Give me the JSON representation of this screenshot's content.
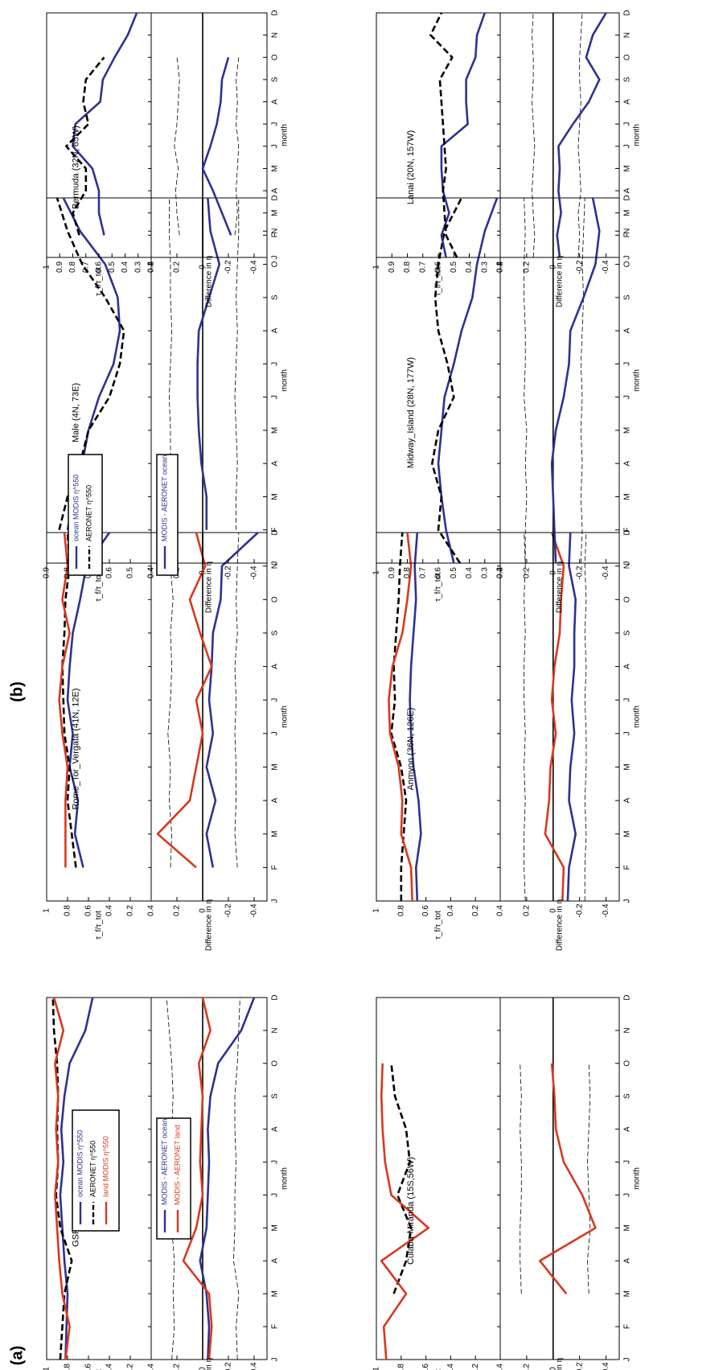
{
  "figure": {
    "panel_labels": [
      "(a)",
      "(b)"
    ],
    "ylabel_ratio": "τ_f/τ_tot",
    "ylabel_diff": "Difference in η",
    "xlabel": "month",
    "months": [
      "J",
      "F",
      "M",
      "A",
      "M",
      "J",
      "J",
      "A",
      "S",
      "O",
      "N",
      "D"
    ],
    "colors": {
      "ocean": "#2e3192",
      "land": "#d9381e",
      "aeronet": "#000000",
      "band": "#000000"
    }
  },
  "legends": {
    "a_ratio": [
      "ocean MODIS η^550",
      "AERONET η^550",
      "land MODIS η^550"
    ],
    "a_diff": [
      "MODIS - AERONET ocean",
      "MODIS - AERONET land"
    ],
    "b_ratio": [
      "ocean MODIS η^550",
      "AERONET η^550"
    ],
    "b_diff": [
      "MODIS - AERONET ocean"
    ]
  },
  "chart_data": [
    {
      "type": "line",
      "site": "GSFC (39N, 76W)",
      "col": 0,
      "row": 0,
      "ratio_ylim": [
        0,
        1
      ],
      "ratio_ticks": [
        0.2,
        0.4,
        0.6,
        0.8,
        1
      ],
      "diff_ylim": [
        -0.5,
        0.4
      ],
      "diff_ticks": [
        -0.4,
        -0.2,
        0,
        0.2,
        0.4
      ],
      "x": [
        1,
        2,
        3,
        4,
        5,
        6,
        7,
        8,
        9,
        10,
        11,
        12
      ],
      "series": [
        {
          "role": "ocean",
          "values": [
            0.82,
            0.81,
            0.8,
            0.83,
            0.85,
            0.87,
            0.84,
            0.86,
            0.83,
            0.78,
            0.63,
            0.56
          ]
        },
        {
          "role": "aeronet",
          "values": [
            0.87,
            0.85,
            0.83,
            0.76,
            0.87,
            0.91,
            0.89,
            0.9,
            0.89,
            0.9,
            0.93,
            0.94
          ]
        },
        {
          "role": "land",
          "values": [
            0.82,
            0.78,
            0.85,
            0.88,
            0.9,
            0.92,
            0.89,
            0.91,
            0.89,
            0.92,
            0.84,
            0.93
          ]
        }
      ],
      "diff": [
        {
          "role": "ocean",
          "values": [
            -0.04,
            -0.05,
            -0.03,
            0.02,
            -0.03,
            -0.04,
            -0.05,
            -0.04,
            -0.06,
            -0.12,
            -0.3,
            -0.4
          ]
        },
        {
          "role": "land",
          "values": [
            -0.05,
            -0.07,
            -0.05,
            0.15,
            0.05,
            0.0,
            0.02,
            0.01,
            0.0,
            0.03,
            -0.06,
            0.0
          ]
        }
      ],
      "band": [
        [
          0.24,
          0.22,
          0.23,
          0.22,
          0.24,
          0.25,
          0.25,
          0.24,
          0.23,
          0.24,
          0.26,
          0.28
        ],
        [
          -0.27,
          -0.26,
          -0.28,
          -0.24,
          -0.25,
          -0.25,
          -0.26,
          -0.25,
          -0.25,
          -0.27,
          -0.28,
          -0.29
        ]
      ]
    },
    {
      "type": "line",
      "site": "Rome_Tor_Vergata (41N, 12E)",
      "col": 1,
      "row": 0,
      "ratio_ylim": [
        0,
        1
      ],
      "ratio_ticks": [
        0.2,
        0.4,
        0.6,
        0.8,
        1
      ],
      "diff_ylim": [
        -0.5,
        0.4
      ],
      "diff_ticks": [
        -0.4,
        -0.2,
        0,
        0.2,
        0.4
      ],
      "x": [
        2,
        3,
        4,
        5,
        6,
        7,
        8,
        9,
        10,
        11,
        12
      ],
      "series": [
        {
          "role": "ocean",
          "values": [
            0.65,
            0.73,
            0.7,
            0.78,
            0.75,
            0.8,
            0.78,
            0.75,
            0.68,
            0.62,
            0.4
          ]
        },
        {
          "role": "aeronet",
          "values": [
            0.72,
            0.76,
            0.8,
            0.78,
            0.83,
            0.84,
            0.85,
            0.83,
            0.82,
            0.78,
            0.8
          ]
        },
        {
          "role": "land",
          "values": [
            0.82,
            0.82,
            0.82,
            0.8,
            0.85,
            0.88,
            0.85,
            0.78,
            0.85,
            0.8,
            0.83
          ]
        }
      ],
      "diff": [
        {
          "role": "ocean",
          "values": [
            -0.08,
            -0.03,
            -0.1,
            -0.03,
            -0.08,
            -0.05,
            -0.07,
            -0.08,
            -0.14,
            -0.15,
            -0.43
          ]
        },
        {
          "role": "land",
          "values": [
            0.05,
            0.35,
            0.1,
            0.05,
            0.0,
            0.05,
            -0.07,
            0.02,
            0.1,
            -0.02,
            0.05
          ]
        }
      ],
      "band": [
        [
          0.25,
          0.24,
          0.26,
          0.25,
          0.27,
          0.25,
          0.24,
          0.25,
          0.23,
          0.25,
          0.27
        ],
        [
          -0.27,
          -0.25,
          -0.26,
          -0.26,
          -0.25,
          -0.26,
          -0.25,
          -0.27,
          -0.26,
          -0.27,
          -0.28
        ]
      ]
    },
    {
      "type": "line",
      "site": "Male (4N, 73E)",
      "col": 2,
      "row": 0,
      "ratio_ylim": [
        0.4,
        0.9
      ],
      "ratio_ticks": [
        0.4,
        0.5,
        0.6,
        0.7,
        0.8,
        0.9
      ],
      "diff_ylim": [
        -0.5,
        0.4
      ],
      "diff_ticks": [
        -0.4,
        -0.2,
        0,
        0.2,
        0.4
      ],
      "x": [
        2,
        3,
        4,
        5,
        6,
        7,
        8,
        9,
        10,
        11,
        12
      ],
      "series": [
        {
          "role": "ocean",
          "values": [
            0.8,
            0.77,
            0.73,
            0.7,
            0.65,
            0.58,
            0.55,
            0.56,
            0.62,
            0.74,
            0.82
          ]
        },
        {
          "role": "aeronet",
          "values": [
            0.84,
            0.8,
            0.74,
            0.7,
            0.6,
            0.55,
            0.53,
            0.62,
            0.73,
            0.8,
            0.85
          ]
        }
      ],
      "diff": [
        {
          "role": "ocean",
          "values": [
            -0.03,
            -0.03,
            0.01,
            0.03,
            0.04,
            0.04,
            0.03,
            -0.05,
            -0.13,
            -0.06,
            -0.04
          ]
        }
      ],
      "band": [
        [
          0.24,
          0.24,
          0.25,
          0.25,
          0.26,
          0.25,
          0.24,
          0.25,
          0.25,
          0.26,
          0.26
        ],
        [
          -0.26,
          -0.26,
          -0.27,
          -0.26,
          -0.25,
          -0.26,
          -0.27,
          -0.26,
          -0.27,
          -0.28,
          -0.28
        ]
      ]
    },
    {
      "type": "line",
      "site": "Bermuda (32N, 65W)",
      "col": 3,
      "row": 0,
      "ratio_ylim": [
        0.2,
        1
      ],
      "ratio_ticks": [
        0.2,
        0.3,
        0.4,
        0.5,
        0.6,
        0.7,
        0.8,
        0.9,
        1
      ],
      "diff_ylim": [
        -0.5,
        0.4
      ],
      "diff_ticks": [
        -0.4,
        -0.2,
        0,
        0.2,
        0.4
      ],
      "x": [
        2,
        3,
        4,
        5,
        6,
        7,
        8,
        9,
        10,
        11,
        12
      ],
      "series": [
        {
          "role": "ocean",
          "values": [
            0.56,
            0.6,
            0.6,
            0.65,
            0.8,
            0.78,
            0.59,
            0.57,
            0.48,
            0.38,
            0.31
          ]
        },
        {
          "role": "aeronet",
          "values": [
            0.75,
            0.8,
            0.7,
            0.7,
            0.85,
            0.68,
            0.72,
            0.7,
            0.56,
            null,
            null
          ]
        }
      ],
      "diff": [
        {
          "role": "ocean",
          "values": [
            -0.22,
            -0.15,
            -0.08,
            0.0,
            -0.06,
            -0.11,
            -0.14,
            -0.15,
            -0.2,
            null,
            null
          ]
        }
      ],
      "band": [
        [
          0.18,
          0.2,
          0.21,
          0.19,
          0.22,
          0.2,
          0.19,
          0.18,
          0.2,
          null,
          null
        ],
        [
          -0.25,
          -0.27,
          -0.26,
          -0.27,
          -0.28,
          -0.26,
          -0.27,
          -0.26,
          -0.28,
          null,
          null
        ]
      ]
    },
    {
      "type": "line",
      "site": "Cuiaba-Miranda (15S,56W)",
      "col": 0,
      "row": 1,
      "ratio_ylim": [
        0,
        1
      ],
      "ratio_ticks": [
        0.2,
        0.4,
        0.6,
        0.8,
        1
      ],
      "diff_ylim": [
        -0.5,
        0.4
      ],
      "diff_ticks": [
        -0.4,
        -0.2,
        0,
        0.2,
        0.4
      ],
      "x": [
        1,
        2,
        3,
        4,
        5,
        6,
        7,
        8,
        9,
        10,
        11,
        12
      ],
      "series": [
        {
          "role": "aeronet",
          "values": [
            null,
            null,
            0.86,
            0.76,
            0.72,
            0.83,
            0.73,
            0.76,
            0.85,
            0.88,
            null,
            null
          ]
        },
        {
          "role": "land",
          "values": [
            0.92,
            0.94,
            0.76,
            0.96,
            0.58,
            0.88,
            0.93,
            0.95,
            0.96,
            0.95,
            null,
            null
          ]
        }
      ],
      "diff": [
        {
          "role": "land",
          "values": [
            null,
            null,
            -0.1,
            0.1,
            -0.32,
            -0.22,
            -0.08,
            -0.02,
            -0.01,
            0.01,
            null,
            null
          ]
        }
      ],
      "band": [
        [
          null,
          null,
          0.24,
          0.25,
          0.25,
          0.24,
          0.24,
          0.25,
          0.24,
          0.25,
          null,
          null
        ],
        [
          null,
          null,
          -0.27,
          -0.26,
          -0.28,
          -0.27,
          -0.26,
          -0.27,
          -0.28,
          -0.27,
          null,
          null
        ]
      ]
    },
    {
      "type": "line",
      "site": "Anmyon (36N, 126E)",
      "col": 1,
      "row": 1,
      "ratio_ylim": [
        0,
        1
      ],
      "ratio_ticks": [
        0.2,
        0.4,
        0.6,
        0.8,
        1
      ],
      "diff_ylim": [
        -0.5,
        0.4
      ],
      "diff_ticks": [
        -0.4,
        -0.2,
        0,
        0.2,
        0.4
      ],
      "x": [
        1,
        2,
        3,
        4,
        5,
        6,
        7,
        8,
        9,
        10,
        11,
        12
      ],
      "series": [
        {
          "role": "ocean",
          "values": [
            0.67,
            0.68,
            0.64,
            0.66,
            0.7,
            0.72,
            0.73,
            0.72,
            0.7,
            0.68,
            0.69,
            0.67
          ]
        },
        {
          "role": "aeronet",
          "values": [
            0.8,
            0.8,
            0.78,
            0.76,
            0.8,
            0.88,
            0.85,
            0.86,
            0.84,
            0.82,
            0.81,
            0.79
          ]
        },
        {
          "role": "land",
          "values": [
            0.71,
            0.72,
            0.8,
            0.79,
            0.82,
            0.89,
            0.9,
            0.87,
            0.79,
            0.75,
            0.72,
            0.75
          ]
        }
      ],
      "diff": [
        {
          "role": "ocean",
          "values": [
            -0.11,
            -0.12,
            -0.17,
            -0.12,
            -0.13,
            -0.16,
            -0.14,
            -0.16,
            -0.16,
            -0.17,
            -0.12,
            -0.13
          ]
        },
        {
          "role": "land",
          "values": [
            -0.07,
            -0.08,
            0.06,
            0.03,
            0.02,
            -0.02,
            0.01,
            -0.01,
            -0.05,
            -0.06,
            -0.08,
            0.01
          ]
        }
      ],
      "band": [
        [
          0.21,
          0.22,
          0.22,
          0.21,
          0.22,
          0.21,
          0.22,
          0.22,
          0.21,
          0.22,
          0.21,
          0.22
        ],
        [
          -0.24,
          -0.24,
          -0.25,
          -0.24,
          -0.25,
          -0.25,
          -0.24,
          -0.25,
          -0.24,
          -0.25,
          -0.24,
          -0.25
        ]
      ]
    },
    {
      "type": "line",
      "site": "Midway_Island (28N, 177W)",
      "col": 2,
      "row": 1,
      "ratio_ylim": [
        0.2,
        1
      ],
      "ratio_ticks": [
        0.2,
        0.3,
        0.4,
        0.5,
        0.6,
        0.7,
        0.8,
        0.9,
        1
      ],
      "diff_ylim": [
        -0.5,
        0.4
      ],
      "diff_ticks": [
        -0.4,
        -0.2,
        0,
        0.2,
        0.4
      ],
      "x": [
        1,
        2,
        3,
        4,
        5,
        6,
        7,
        8,
        9,
        10,
        11,
        12
      ],
      "series": [
        {
          "role": "ocean",
          "values": [
            0.5,
            0.55,
            0.58,
            0.6,
            0.58,
            0.56,
            0.5,
            0.45,
            0.38,
            0.35,
            0.3,
            0.22
          ]
        },
        {
          "role": "aeronet",
          "values": [
            0.46,
            0.6,
            0.58,
            0.64,
            0.6,
            0.5,
            0.54,
            0.6,
            0.62,
            0.6,
            0.56,
            0.45
          ]
        }
      ],
      "diff": [
        {
          "role": "ocean",
          "values": [
            -0.02,
            -0.01,
            0.0,
            0.01,
            -0.02,
            -0.08,
            -0.12,
            -0.13,
            -0.23,
            -0.32,
            -0.35,
            -0.3
          ]
        }
      ],
      "band": [
        [
          0.21,
          0.21,
          0.2,
          0.21,
          0.2,
          0.22,
          0.21,
          0.21,
          0.22,
          0.22,
          0.21,
          0.22
        ],
        [
          -0.21,
          -0.22,
          -0.21,
          -0.22,
          -0.21,
          -0.22,
          -0.21,
          -0.22,
          -0.23,
          -0.22,
          -0.23,
          -0.24
        ]
      ]
    },
    {
      "type": "line",
      "site": "Lanai (20N, 157W)",
      "col": 3,
      "row": 1,
      "ratio_ylim": [
        0.2,
        1
      ],
      "ratio_ticks": [
        0.2,
        0.3,
        0.4,
        0.5,
        0.6,
        0.7,
        0.8,
        0.9,
        1
      ],
      "diff_ylim": [
        -0.5,
        0.4
      ],
      "diff_ticks": [
        -0.4,
        -0.2,
        0,
        0.2,
        0.4
      ],
      "x": [
        1,
        2,
        3,
        4,
        5,
        6,
        7,
        8,
        9,
        10,
        11,
        12
      ],
      "series": [
        {
          "role": "ocean",
          "values": [
            0.55,
            0.58,
            0.53,
            0.57,
            0.58,
            0.58,
            0.41,
            0.42,
            0.42,
            0.36,
            0.35,
            0.3
          ]
        },
        {
          "role": "aeronet",
          "values": [
            0.48,
            0.55,
            0.56,
            0.57,
            0.55,
            0.56,
            0.57,
            0.58,
            0.59,
            0.51,
            0.65,
            0.58
          ]
        }
      ],
      "diff": [
        {
          "role": "ocean",
          "values": [
            -0.05,
            -0.03,
            -0.06,
            -0.04,
            -0.05,
            -0.04,
            -0.15,
            -0.27,
            -0.35,
            -0.25,
            -0.3,
            -0.4
          ]
        }
      ],
      "band": [
        [
          0.15,
          0.14,
          0.15,
          0.16,
          0.15,
          0.14,
          0.15,
          0.16,
          0.15,
          0.15,
          0.16,
          0.15
        ],
        [
          -0.19,
          -0.2,
          -0.19,
          -0.21,
          -0.2,
          -0.19,
          -0.2,
          -0.21,
          -0.2,
          -0.2,
          -0.21,
          -0.22
        ]
      ]
    }
  ]
}
